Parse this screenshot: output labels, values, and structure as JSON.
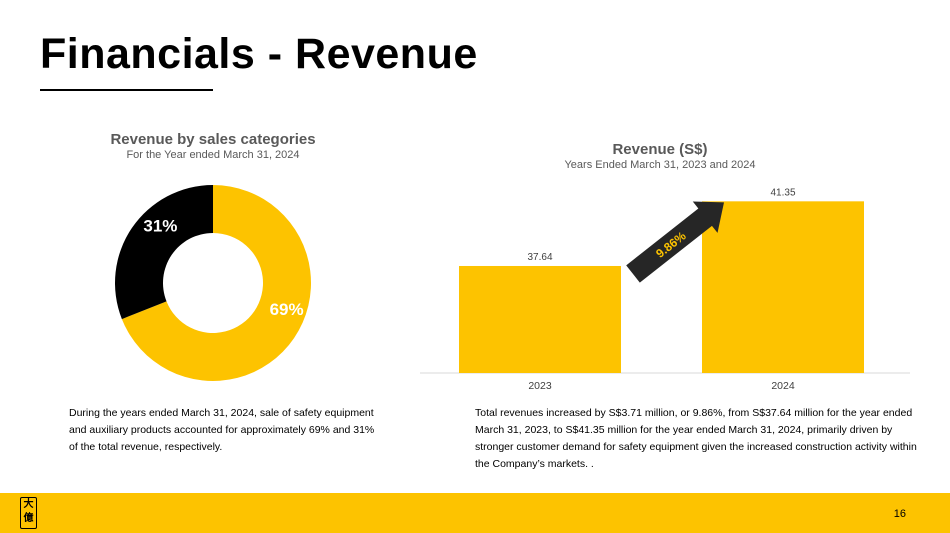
{
  "slide": {
    "title": "Financials - Revenue",
    "page_number": "16",
    "logo_text": [
      "大",
      "億"
    ]
  },
  "colors": {
    "accent": "#fdc300",
    "dark": "#000000",
    "arrow": "#262626"
  },
  "chart_data": [
    {
      "type": "pie",
      "style": "donut",
      "title": "Revenue by sales categories",
      "subtitle": "For the Year ended March 31, 2024",
      "slices": [
        {
          "value": 69,
          "label": "69%",
          "color": "#fdc300"
        },
        {
          "value": 31,
          "label": "31%",
          "color": "#000000"
        }
      ]
    },
    {
      "type": "bar",
      "title": "Revenue (S$)",
      "subtitle": "Years Ended March 31, 2023 and 2024",
      "categories": [
        "2023",
        "2024"
      ],
      "values": [
        37.64,
        41.35
      ],
      "data_labels": [
        "37.64",
        "41.35"
      ],
      "ylim": [
        31.5,
        42.0
      ],
      "grid": false,
      "bar_color": "#fdc300",
      "annotation": {
        "text": "9.86%",
        "type": "arrow"
      }
    }
  ],
  "text": {
    "left_paragraph": "During the years ended March 31, 2024, sale of safety equipment and auxiliary products accounted for approximately 69% and 31% of the total revenue, respectively.",
    "right_paragraph": "Total revenues increased by S$3.71 million, or 9.86%, from S$37.64 million for the year ended March 31, 2023, to S$41.35 million for the year ended March 31, 2024, primarily driven by stronger customer demand for safety equipment given the increased construction activity within the Company’s markets. ."
  }
}
